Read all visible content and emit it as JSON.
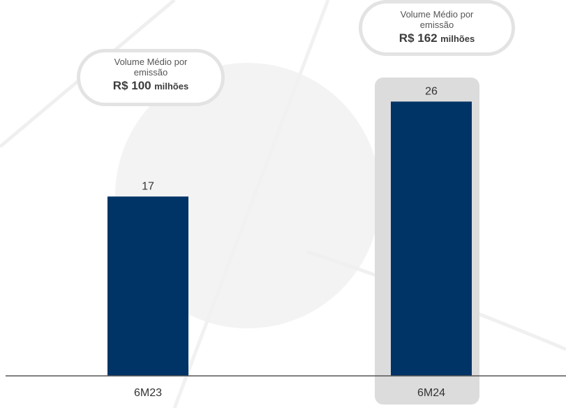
{
  "chart_data": {
    "type": "bar",
    "categories": [
      "6M23",
      "6M24"
    ],
    "values": [
      17,
      26
    ],
    "highlighted_category": "6M24",
    "colors": {
      "bar": "#003366",
      "highlight_band": "#dcdcdc",
      "axis": "#555555",
      "label": "#333333",
      "background_watermark": "#f2f2f2"
    },
    "annotations": [
      {
        "category": "6M23",
        "line1": "Volume Médio por",
        "line2": "emissão",
        "value_number": "R$ 100",
        "value_unit": "milhões"
      },
      {
        "category": "6M24",
        "line1": "Volume Médio por",
        "line2": "emissão",
        "value_number": "R$ 162",
        "value_unit": "milhões"
      }
    ],
    "ylim": [
      0,
      30
    ],
    "grid": false,
    "title": "",
    "xlabel": "",
    "ylabel": ""
  }
}
